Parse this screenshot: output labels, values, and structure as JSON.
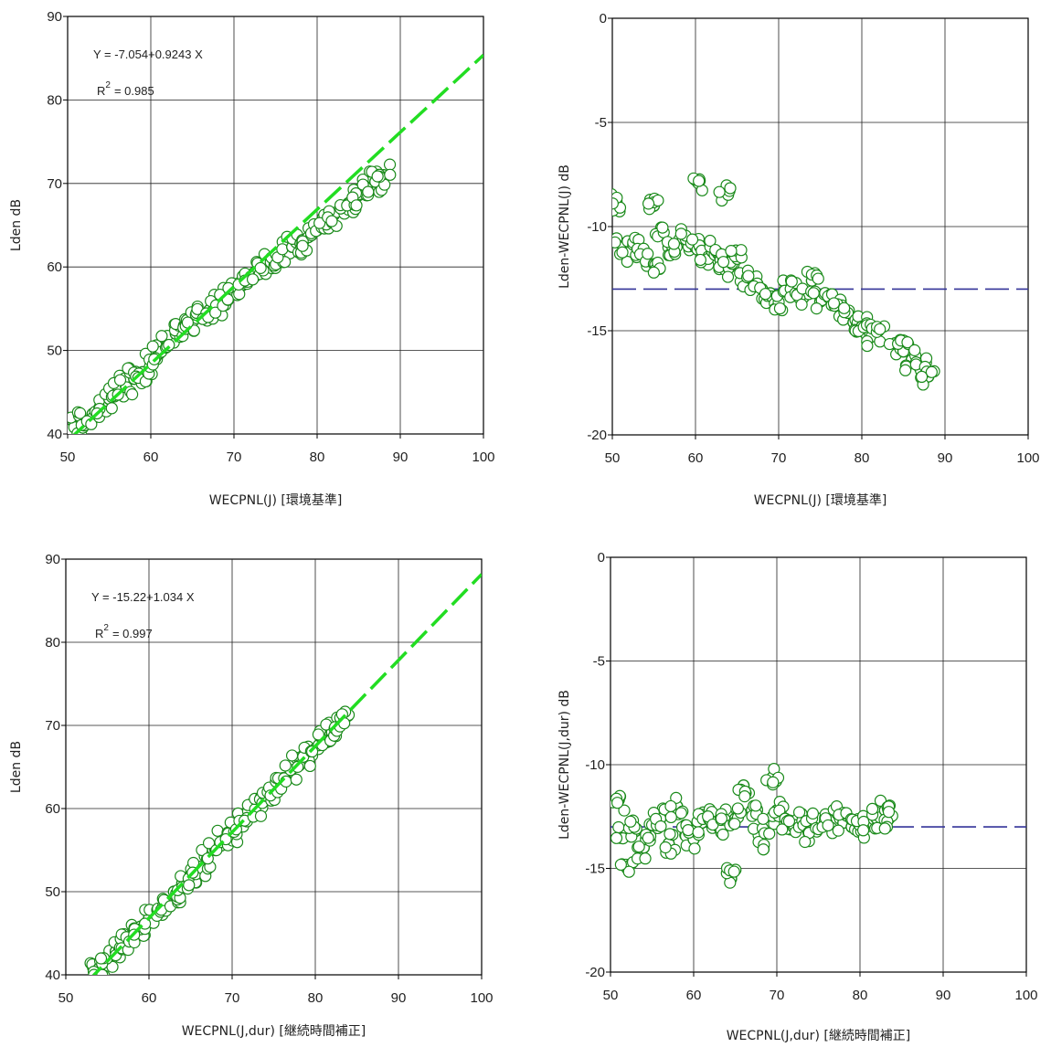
{
  "chart_data": [
    {
      "type": "scatter",
      "xlabel": "WECPNL(J) [環境基準]",
      "ylabel": "Lden dB",
      "xlim": [
        50,
        100
      ],
      "ylim": [
        40,
        90
      ],
      "xticks": [
        50,
        60,
        70,
        80,
        90,
        100
      ],
      "yticks": [
        40,
        50,
        60,
        70,
        80,
        90
      ],
      "grid": true,
      "fit": {
        "label": "Y = -7.054+0.9243 X",
        "r2_label": "R",
        "r2_exp": "2",
        "r2_value": "= 0.985",
        "intercept": -7.054,
        "slope": 0.9243,
        "color": "#22dd22",
        "style": "dashed"
      },
      "series": [
        {
          "marker": "open-circle",
          "color": "#1a8a1a",
          "x": [
            51,
            52,
            53,
            54,
            55,
            56,
            57,
            58,
            59,
            60,
            61,
            62,
            63,
            64,
            65,
            66,
            67,
            68,
            69,
            70,
            71,
            72,
            73,
            74,
            75,
            76,
            77,
            78,
            79,
            80,
            81,
            82,
            83,
            84,
            85,
            86,
            87,
            88
          ],
          "y": [
            40.8,
            41.6,
            42.4,
            43.3,
            44.2,
            45.0,
            45.8,
            46.6,
            47.4,
            48.4,
            49.6,
            50.8,
            52.0,
            53.0,
            53.4,
            54.0,
            54.8,
            55.4,
            56.2,
            57.0,
            57.8,
            58.8,
            59.6,
            60.4,
            61.2,
            61.8,
            62.4,
            62.8,
            63.6,
            64.4,
            65.4,
            66.2,
            67.0,
            67.8,
            68.6,
            69.4,
            70.2,
            71.0
          ]
        }
      ]
    },
    {
      "type": "scatter",
      "xlabel": "WECPNL(J) [環境基準]",
      "ylabel": "Lden-WECPNL(J) dB",
      "xlim": [
        50,
        100
      ],
      "ylim": [
        -20,
        0
      ],
      "xticks": [
        50,
        60,
        70,
        80,
        90,
        100
      ],
      "yticks": [
        -20,
        -15,
        -10,
        -5,
        0
      ],
      "grid": true,
      "reference_line": {
        "y": -13,
        "color": "#333399",
        "style": "dashed"
      },
      "series": [
        {
          "marker": "open-circle",
          "color": "#1a8a1a",
          "x": [
            50.5,
            51,
            52,
            53,
            54,
            55,
            55,
            56,
            57,
            58,
            59,
            60,
            60.5,
            61,
            62,
            63,
            63.5,
            64,
            65,
            66,
            67,
            68,
            69,
            70,
            71,
            72,
            73,
            74,
            75,
            76,
            77,
            78,
            79,
            80,
            81,
            82,
            84,
            85,
            86,
            87,
            88
          ],
          "y": [
            -8.8,
            -10.8,
            -11.2,
            -11.0,
            -11.4,
            -9.0,
            -11.8,
            -10.4,
            -11.2,
            -10.8,
            -10.6,
            -11.0,
            -7.8,
            -11.4,
            -11.2,
            -11.6,
            -8.4,
            -12.0,
            -11.2,
            -12.4,
            -12.6,
            -13.0,
            -13.2,
            -13.8,
            -12.8,
            -13.0,
            -13.4,
            -12.6,
            -13.6,
            -13.4,
            -13.8,
            -14.2,
            -14.6,
            -14.8,
            -15.2,
            -15.0,
            -15.6,
            -16.0,
            -16.4,
            -16.8,
            -17.2
          ]
        }
      ]
    },
    {
      "type": "scatter",
      "xlabel": "WECPNL(J,dur) [継続時間補正]",
      "ylabel": "Lden dB",
      "xlim": [
        50,
        100
      ],
      "ylim": [
        40,
        90
      ],
      "xticks": [
        50,
        60,
        70,
        80,
        90,
        100
      ],
      "yticks": [
        40,
        50,
        60,
        70,
        80,
        90
      ],
      "grid": true,
      "fit": {
        "label": "Y = -15.22+1.034 X",
        "r2_label": "R",
        "r2_exp": "2",
        "r2_value": "= 0.997",
        "intercept": -15.22,
        "slope": 1.034,
        "color": "#22dd22",
        "style": "dashed"
      },
      "series": [
        {
          "marker": "open-circle",
          "color": "#1a8a1a",
          "x": [
            53.5,
            54,
            55,
            56,
            57,
            58,
            59,
            60,
            61,
            62,
            63,
            64,
            65,
            66,
            67,
            68,
            69,
            70,
            71,
            72,
            73,
            74,
            75,
            76,
            77,
            78,
            79,
            80,
            81,
            82,
            83,
            83.5
          ],
          "y": [
            40.2,
            40.8,
            41.8,
            42.8,
            43.8,
            44.8,
            45.8,
            46.8,
            47.8,
            48.9,
            50.0,
            51.0,
            52.0,
            53.0,
            54.0,
            55.0,
            56.0,
            57.2,
            58.2,
            59.2,
            60.2,
            61.2,
            62.2,
            63.2,
            64.2,
            65.2,
            66.2,
            67.2,
            68.2,
            69.2,
            70.2,
            70.8
          ]
        }
      ]
    },
    {
      "type": "scatter",
      "xlabel": "WECPNL(J,dur) [継続時間補正]",
      "ylabel": "Lden-WECPNL(J,dur) dB",
      "xlim": [
        50,
        100
      ],
      "ylim": [
        -20,
        0
      ],
      "xticks": [
        50,
        60,
        70,
        80,
        90,
        100
      ],
      "yticks": [
        -20,
        -15,
        -10,
        -5,
        0
      ],
      "grid": true,
      "reference_line": {
        "y": -13,
        "color": "#333399",
        "style": "dashed"
      },
      "series": [
        {
          "marker": "open-circle",
          "color": "#1a8a1a",
          "x": [
            51,
            51.5,
            52,
            53,
            54,
            55,
            56,
            57,
            58,
            59,
            60,
            61,
            62,
            63,
            64,
            64.5,
            65,
            66,
            67,
            68,
            69,
            69.5,
            70,
            71,
            72,
            73,
            74,
            75,
            76,
            77,
            78,
            79,
            80,
            81,
            82,
            83,
            83.5
          ],
          "y": [
            -11.7,
            -13.4,
            -15.0,
            -13.2,
            -14.0,
            -13.0,
            -12.6,
            -13.8,
            -12.0,
            -13.4,
            -13.6,
            -12.8,
            -12.6,
            -13.0,
            -12.4,
            -15.5,
            -12.6,
            -11.0,
            -12.2,
            -13.6,
            -12.8,
            -10.6,
            -12.2,
            -12.6,
            -13.0,
            -12.4,
            -13.2,
            -12.6,
            -12.8,
            -12.2,
            -12.8,
            -13.0,
            -13.0,
            -12.8,
            -12.6,
            -12.2,
            -12.6
          ]
        }
      ]
    }
  ]
}
